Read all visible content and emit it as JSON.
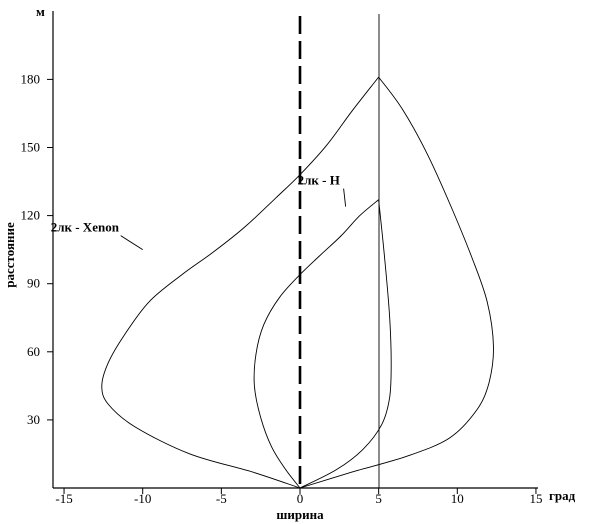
{
  "chart_data": {
    "type": "line",
    "title": "",
    "xlabel": "ширина",
    "x_unit": "град",
    "ylabel": "расстояние",
    "y_unit": "м",
    "xlim": [
      -16.5,
      18
    ],
    "ylim": [
      0,
      210
    ],
    "x_ticks": [
      -15,
      -10,
      -5,
      0,
      5,
      10,
      15
    ],
    "y_ticks": [
      30,
      60,
      90,
      120,
      150,
      180
    ],
    "grid": false,
    "reference_lines": [
      {
        "x": 0,
        "style": "dashed"
      },
      {
        "x": 5,
        "style": "solid"
      }
    ],
    "series": [
      {
        "name": "2лк - Xenon",
        "label_point": {
          "x": -10.0,
          "y": 105
        },
        "x": [
          0,
          -3,
          -7,
          -10.5,
          -12.2,
          -12.6,
          -12.2,
          -11.2,
          -9.6,
          -7.5,
          -5.5,
          -3.5,
          -1.5,
          0,
          1.7,
          3.3,
          5,
          6.5,
          8.1,
          9.6,
          10.9,
          11.9,
          12.3,
          12.0,
          11.2,
          9.5,
          6.8,
          3.3,
          0
        ],
        "y": [
          0,
          7,
          15,
          27,
          37,
          45,
          55,
          67,
          82,
          94,
          104,
          115,
          128,
          138,
          151,
          166,
          181,
          167,
          147,
          124,
          102,
          82,
          62,
          46,
          34,
          22,
          14,
          7,
          0
        ]
      },
      {
        "name": "2лк - H",
        "label_point": {
          "x": 2.9,
          "y": 124
        },
        "x": [
          0,
          -0.9,
          -1.8,
          -2.5,
          -2.9,
          -2.8,
          -2.3,
          -1.3,
          0,
          1.2,
          2.6,
          3.8,
          5,
          5.4,
          5.7,
          5.8,
          5.7,
          5.2,
          4.0,
          2.3,
          0
        ],
        "y": [
          0,
          8,
          18,
          31,
          45,
          59,
          72,
          84,
          94,
          102,
          111,
          120,
          127,
          100,
          75,
          55,
          40,
          28,
          17,
          8,
          0
        ]
      }
    ]
  }
}
